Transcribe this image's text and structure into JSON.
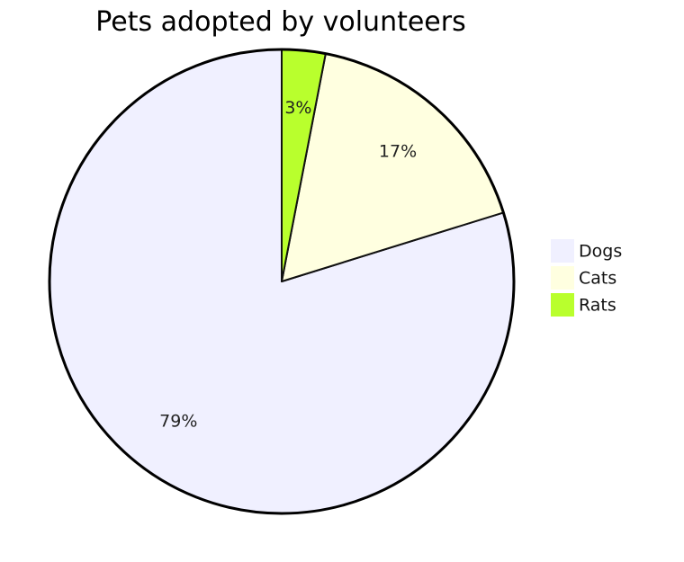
{
  "chart_data": {
    "type": "pie",
    "title": "Pets adopted by volunteers",
    "legend_position": "right",
    "slices": [
      {
        "label": "Dogs",
        "percent_label": "79%",
        "value": 79,
        "color": "#f0f0ff"
      },
      {
        "label": "Cats",
        "percent_label": "17%",
        "value": 17,
        "color": "#ffffe0"
      },
      {
        "label": "Rats",
        "percent_label": "3%",
        "value": 3,
        "color": "#b9ff2d"
      }
    ]
  }
}
